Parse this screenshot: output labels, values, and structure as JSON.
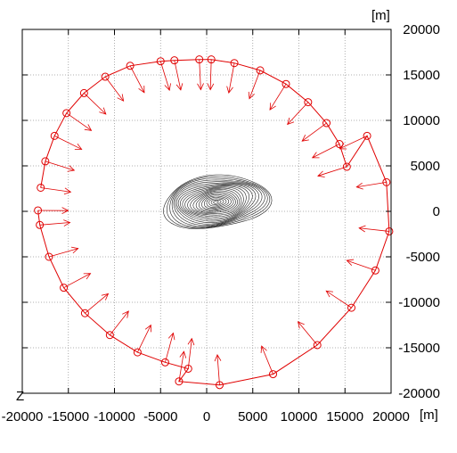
{
  "chart_data": {
    "type": "scatter",
    "title": "",
    "xlabel": "",
    "ylabel": "",
    "x_unit": "[m]",
    "y_unit": "[m]",
    "axis_corner_label": "Z",
    "xlim": [
      -20000,
      20000
    ],
    "ylim": [
      -20000,
      20000
    ],
    "x_ticks": [
      -20000,
      -15000,
      -10000,
      -5000,
      0,
      5000,
      10000,
      15000,
      20000
    ],
    "y_ticks": [
      -20000,
      -15000,
      -10000,
      -5000,
      0,
      5000,
      10000,
      15000,
      20000
    ],
    "x_tick_labels": [
      "-20000",
      "-15000",
      "-10000",
      "-5000",
      "0",
      "5000",
      "10000",
      "15000",
      "20000"
    ],
    "y_tick_labels": [
      "-20000",
      "-15000",
      "-10000",
      "-5000",
      "0",
      "5000",
      "10000",
      "15000",
      "20000"
    ],
    "grid": true,
    "series": [
      {
        "color": "#e00000",
        "description_of_marks": "circle markers on trajectory with arrows toward center",
        "points": [
          [
            -18000,
            2600
          ],
          [
            -17500,
            5500
          ],
          [
            -16500,
            8300
          ],
          [
            -15200,
            10800
          ],
          [
            -13300,
            13000
          ],
          [
            -11000,
            14800
          ],
          [
            -8300,
            16000
          ],
          [
            -5000,
            16500
          ],
          [
            -3500,
            16600
          ],
          [
            -800,
            16700
          ],
          [
            500,
            16700
          ],
          [
            3000,
            16300
          ],
          [
            5800,
            15500
          ],
          [
            8600,
            14000
          ],
          [
            11000,
            12000
          ],
          [
            13000,
            9700
          ],
          [
            14400,
            7400
          ],
          [
            15200,
            4900
          ],
          [
            17400,
            8300
          ],
          [
            19500,
            3200
          ],
          [
            19800,
            -2200
          ],
          [
            18300,
            -6500
          ],
          [
            15700,
            -10600
          ],
          [
            12000,
            -14700
          ],
          [
            7200,
            -17900
          ],
          [
            1400,
            -19100
          ],
          [
            -3000,
            -18700
          ],
          [
            -2000,
            -17300
          ],
          [
            -4500,
            -16600
          ],
          [
            -7500,
            -15500
          ],
          [
            -10500,
            -13600
          ],
          [
            -13200,
            -11200
          ],
          [
            -15500,
            -8400
          ],
          [
            -17100,
            -5000
          ],
          [
            -18100,
            -1500
          ],
          [
            -18300,
            100
          ]
        ]
      },
      {
        "color": "#000000",
        "description_of_marks": "nested closed contour curves near center",
        "center": [
          1000,
          1000
        ],
        "extent_x": [
          -5500,
          6300
        ],
        "extent_y": [
          -2300,
          4000
        ]
      }
    ]
  }
}
